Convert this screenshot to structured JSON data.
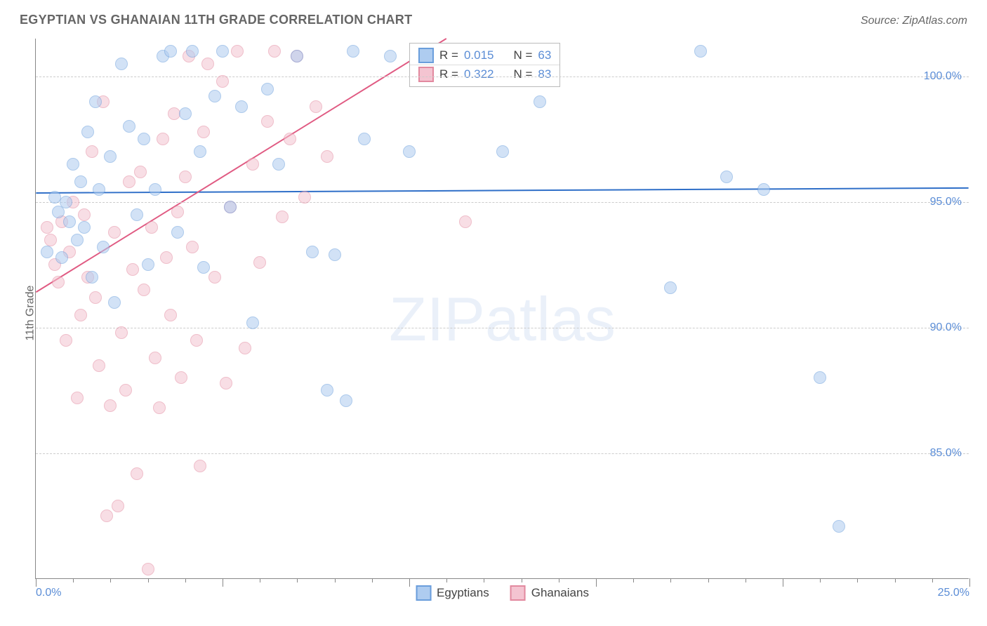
{
  "title": "EGYPTIAN VS GHANAIAN 11TH GRADE CORRELATION CHART",
  "source": "Source: ZipAtlas.com",
  "ylabel": "11th Grade",
  "watermark_bold": "ZIP",
  "watermark_light": "atlas",
  "chart": {
    "type": "scatter",
    "xlim": [
      0,
      25
    ],
    "ylim": [
      80,
      101.5
    ],
    "background_color": "#ffffff",
    "grid_color": "#cccccc",
    "axis_color": "#888888",
    "tick_label_color": "#5b8dd6",
    "tick_label_fontsize": 16,
    "title_fontsize": 18,
    "title_color": "#666666",
    "yticks": [
      85.0,
      90.0,
      95.0,
      100.0
    ],
    "ytick_labels": [
      "85.0%",
      "90.0%",
      "95.0%",
      "100.0%"
    ],
    "xticks_minor": [
      1.0,
      2.0,
      3.0,
      4.0,
      5.0,
      6.0,
      7.0,
      8.0,
      9.0,
      10.0,
      11.0,
      12.0,
      13.0,
      14.0,
      15.0,
      16.0,
      17.0,
      18.0,
      19.0,
      20.0,
      21.0,
      22.0,
      23.0,
      24.0
    ],
    "xticks_major": [
      0.0,
      5.0,
      10.0,
      15.0,
      20.0,
      25.0
    ],
    "xtick_labels": {
      "0.0": "0.0%",
      "25.0": "25.0%"
    },
    "marker_radius": 9,
    "marker_opacity": 0.55,
    "line_width": 2,
    "series": [
      {
        "name": "Egyptians",
        "color_fill": "#aeccf0",
        "color_stroke": "#6a9edc",
        "line_color": "#2f6fc8",
        "R": "0.015",
        "N": "63",
        "trend": {
          "x1": 0.0,
          "y1": 95.35,
          "x2": 25.0,
          "y2": 95.55
        },
        "points": [
          [
            0.3,
            93.0
          ],
          [
            0.5,
            95.2
          ],
          [
            0.6,
            94.6
          ],
          [
            0.7,
            92.8
          ],
          [
            0.8,
            95.0
          ],
          [
            0.9,
            94.2
          ],
          [
            1.0,
            96.5
          ],
          [
            1.1,
            93.5
          ],
          [
            1.2,
            95.8
          ],
          [
            1.3,
            94.0
          ],
          [
            1.4,
            97.8
          ],
          [
            1.5,
            92.0
          ],
          [
            1.6,
            99.0
          ],
          [
            1.7,
            95.5
          ],
          [
            1.8,
            93.2
          ],
          [
            2.0,
            96.8
          ],
          [
            2.1,
            91.0
          ],
          [
            2.3,
            100.5
          ],
          [
            2.5,
            98.0
          ],
          [
            2.7,
            94.5
          ],
          [
            2.9,
            97.5
          ],
          [
            3.0,
            92.5
          ],
          [
            3.2,
            95.5
          ],
          [
            3.4,
            100.8
          ],
          [
            3.6,
            101.0
          ],
          [
            3.8,
            93.8
          ],
          [
            4.0,
            98.5
          ],
          [
            4.2,
            101.0
          ],
          [
            4.4,
            97.0
          ],
          [
            4.5,
            92.4
          ],
          [
            4.8,
            99.2
          ],
          [
            5.0,
            101.0
          ],
          [
            5.2,
            94.8
          ],
          [
            5.5,
            98.8
          ],
          [
            5.8,
            90.2
          ],
          [
            6.2,
            99.5
          ],
          [
            6.5,
            96.5
          ],
          [
            7.0,
            100.8
          ],
          [
            7.4,
            93.0
          ],
          [
            7.8,
            87.5
          ],
          [
            8.0,
            92.9
          ],
          [
            8.3,
            87.1
          ],
          [
            8.5,
            101.0
          ],
          [
            8.8,
            97.5
          ],
          [
            9.5,
            100.8
          ],
          [
            10.0,
            97.0
          ],
          [
            12.5,
            97.0
          ],
          [
            13.5,
            99.0
          ],
          [
            17.0,
            91.6
          ],
          [
            17.8,
            101.0
          ],
          [
            18.5,
            96.0
          ],
          [
            19.5,
            95.5
          ],
          [
            21.0,
            88.0
          ],
          [
            21.5,
            82.1
          ]
        ]
      },
      {
        "name": "Ghanaians",
        "color_fill": "#f4c4d1",
        "color_stroke": "#e2899f",
        "line_color": "#e05a82",
        "R": "0.322",
        "N": "83",
        "trend": {
          "x1": 0.0,
          "y1": 91.4,
          "x2": 11.0,
          "y2": 101.5
        },
        "points": [
          [
            0.3,
            94.0
          ],
          [
            0.4,
            93.5
          ],
          [
            0.5,
            92.5
          ],
          [
            0.6,
            91.8
          ],
          [
            0.7,
            94.2
          ],
          [
            0.8,
            89.5
          ],
          [
            0.9,
            93.0
          ],
          [
            1.0,
            95.0
          ],
          [
            1.1,
            87.2
          ],
          [
            1.2,
            90.5
          ],
          [
            1.3,
            94.5
          ],
          [
            1.4,
            92.0
          ],
          [
            1.5,
            97.0
          ],
          [
            1.6,
            91.2
          ],
          [
            1.7,
            88.5
          ],
          [
            1.8,
            99.0
          ],
          [
            1.9,
            82.5
          ],
          [
            2.0,
            86.9
          ],
          [
            2.1,
            93.8
          ],
          [
            2.2,
            82.9
          ],
          [
            2.3,
            89.8
          ],
          [
            2.4,
            87.5
          ],
          [
            2.5,
            95.8
          ],
          [
            2.6,
            92.3
          ],
          [
            2.7,
            84.2
          ],
          [
            2.8,
            96.2
          ],
          [
            2.9,
            91.5
          ],
          [
            3.0,
            80.4
          ],
          [
            3.1,
            94.0
          ],
          [
            3.2,
            88.8
          ],
          [
            3.3,
            86.8
          ],
          [
            3.4,
            97.5
          ],
          [
            3.5,
            92.8
          ],
          [
            3.6,
            90.5
          ],
          [
            3.7,
            98.5
          ],
          [
            3.8,
            94.6
          ],
          [
            3.9,
            88.0
          ],
          [
            4.0,
            96.0
          ],
          [
            4.1,
            100.8
          ],
          [
            4.2,
            93.2
          ],
          [
            4.3,
            89.5
          ],
          [
            4.4,
            84.5
          ],
          [
            4.5,
            97.8
          ],
          [
            4.6,
            100.5
          ],
          [
            4.8,
            92.0
          ],
          [
            5.0,
            99.8
          ],
          [
            5.1,
            87.8
          ],
          [
            5.2,
            94.8
          ],
          [
            5.4,
            101.0
          ],
          [
            5.6,
            89.2
          ],
          [
            5.8,
            96.5
          ],
          [
            6.0,
            92.6
          ],
          [
            6.2,
            98.2
          ],
          [
            6.4,
            101.0
          ],
          [
            6.6,
            94.4
          ],
          [
            6.8,
            97.5
          ],
          [
            7.0,
            100.8
          ],
          [
            7.2,
            95.2
          ],
          [
            7.5,
            98.8
          ],
          [
            7.8,
            96.8
          ],
          [
            11.5,
            94.2
          ]
        ]
      }
    ],
    "legend_top": {
      "r_label": "R =",
      "n_label": "N ="
    },
    "legend_bottom_labels": [
      "Egyptians",
      "Ghanaians"
    ]
  }
}
